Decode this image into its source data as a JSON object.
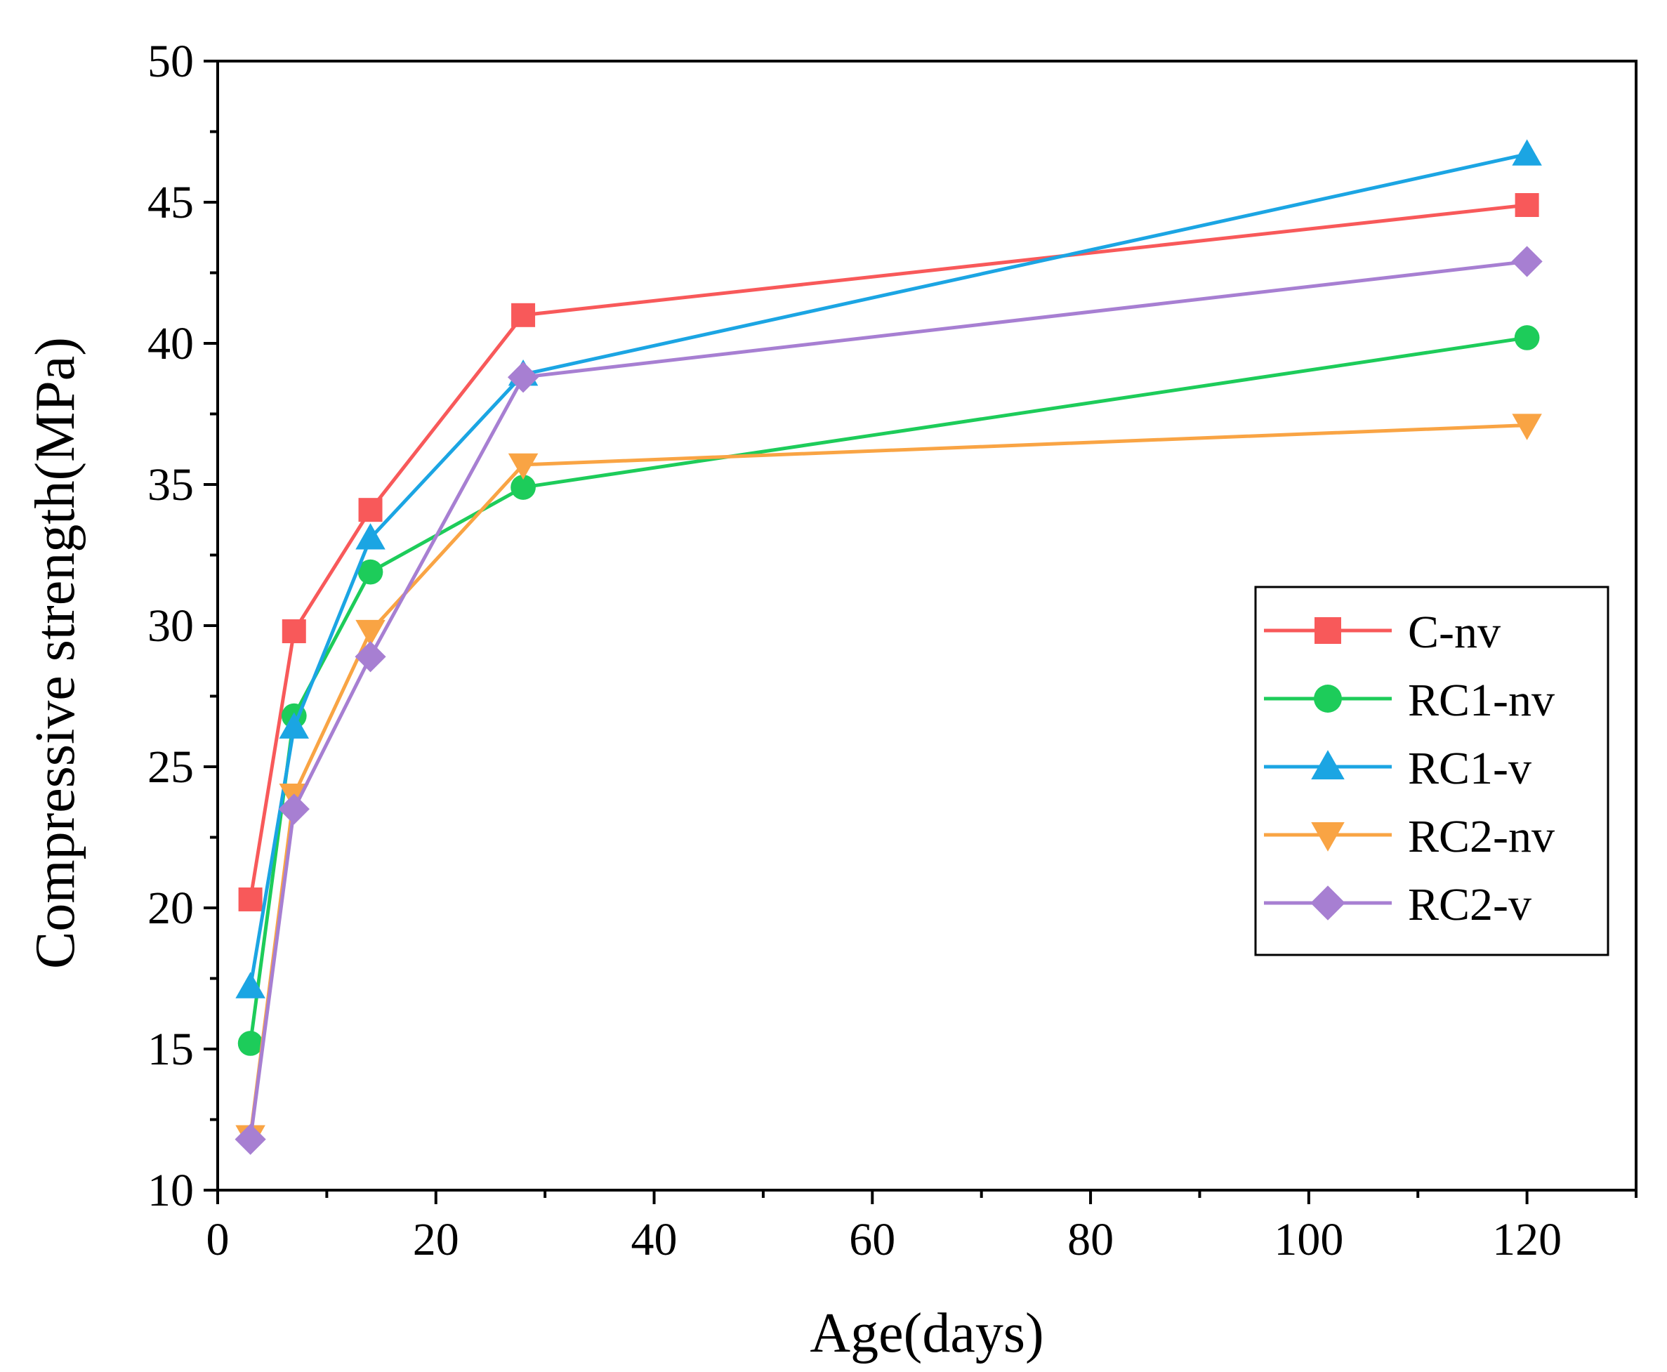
{
  "chart_data": {
    "type": "line",
    "title": "",
    "xlabel": "Age(days)",
    "ylabel": "Compressive strength(MPa)",
    "xlim": [
      0,
      130
    ],
    "ylim": [
      10,
      50
    ],
    "xticks": [
      0,
      20,
      40,
      60,
      80,
      100,
      120
    ],
    "yticks": [
      10,
      15,
      20,
      25,
      30,
      35,
      40,
      45,
      50
    ],
    "grid": false,
    "legend_position": "center-right",
    "x": [
      3,
      7,
      14,
      28,
      120
    ],
    "series": [
      {
        "name": "C-nv",
        "color": "#F8595A",
        "marker": "square",
        "values": [
          20.3,
          29.8,
          34.1,
          41.0,
          44.9
        ]
      },
      {
        "name": "RC1-nv",
        "color": "#1DCC5A",
        "marker": "circle",
        "values": [
          15.2,
          26.8,
          31.9,
          34.9,
          40.2
        ]
      },
      {
        "name": "RC1-v",
        "color": "#1BA5E3",
        "marker": "triangle-up",
        "values": [
          17.2,
          26.4,
          33.1,
          38.9,
          46.7
        ]
      },
      {
        "name": "RC2-nv",
        "color": "#F9A444",
        "marker": "triangle-down",
        "values": [
          11.9,
          24.0,
          29.8,
          35.7,
          37.1
        ]
      },
      {
        "name": "RC2-v",
        "color": "#A77FD2",
        "marker": "diamond",
        "values": [
          11.8,
          23.5,
          28.9,
          38.8,
          42.9
        ]
      }
    ]
  }
}
